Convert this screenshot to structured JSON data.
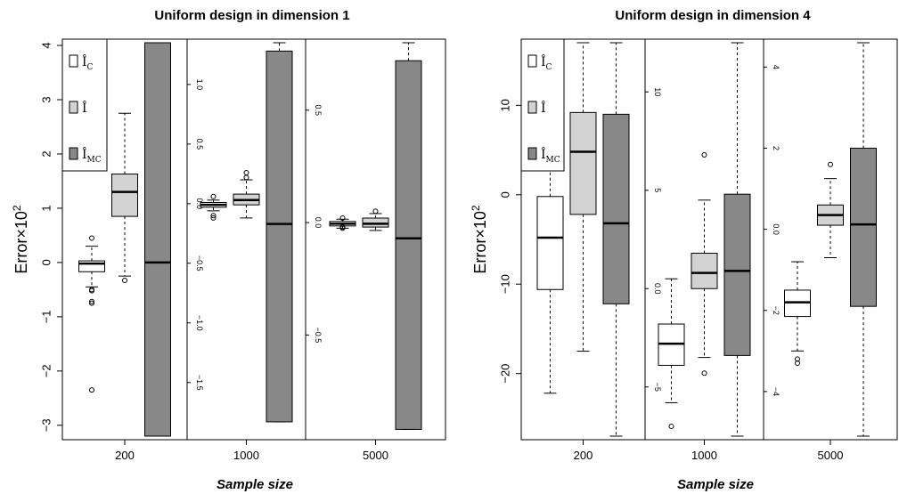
{
  "chart_data": [
    {
      "type": "boxplot",
      "title": "Uniform design in dimension 1",
      "xlabel": "Sample size",
      "ylabel": "Error×10^2",
      "legend": {
        "placement": "top-left",
        "entries": [
          "Î_C",
          "Î",
          "Î_MC"
        ],
        "fills": [
          "#ffffff",
          "#d3d3d3",
          "#888888"
        ]
      },
      "panels": [
        {
          "category": "200",
          "ylim": [
            -3.2,
            4.05
          ],
          "yticks": [
            -3,
            -2,
            -1,
            0,
            1,
            2,
            3,
            4
          ],
          "axis_side": "left",
          "boxes": [
            {
              "series": "Î_C",
              "q1": -0.17,
              "median": -0.02,
              "q3": 0.03,
              "wlo": -0.45,
              "whi": 0.3,
              "outliers": [
                0.45,
                -0.5,
                -0.52,
                -0.72,
                -0.75,
                -2.35
              ]
            },
            {
              "series": "Î",
              "q1": 0.85,
              "median": 1.3,
              "q3": 1.63,
              "wlo": -0.25,
              "whi": 2.75,
              "outliers": [
                -0.33
              ]
            },
            {
              "series": "Î_MC",
              "q1": -3.2,
              "median": 0.0,
              "q3": 4.05,
              "wlo": -3.2,
              "whi": 4.05,
              "outliers": []
            }
          ]
        },
        {
          "category": "1000",
          "ylim": [
            -1.95,
            1.35
          ],
          "yticks": [
            -1.5,
            -1.0,
            -0.5,
            0.0,
            0.5,
            1.0
          ],
          "axis_side": "inner",
          "boxes": [
            {
              "series": "Î_C",
              "q1": -0.03,
              "median": -0.01,
              "q3": 0.01,
              "wlo": -0.06,
              "whi": 0.03,
              "outliers": [
                0.06,
                -0.1,
                -0.12
              ]
            },
            {
              "series": "Î",
              "q1": -0.01,
              "median": 0.03,
              "q3": 0.08,
              "wlo": -0.12,
              "whi": 0.2,
              "outliers": [
                0.26,
                0.22
              ]
            },
            {
              "series": "Î_MC",
              "q1": -1.83,
              "median": -0.17,
              "q3": 1.28,
              "wlo": -1.83,
              "whi": 1.35,
              "outliers": []
            }
          ]
        },
        {
          "category": "5000",
          "ylim": [
            -0.95,
            0.8
          ],
          "yticks": [
            -0.5,
            0.0,
            0.5
          ],
          "axis_side": "inner",
          "boxes": [
            {
              "series": "Î_C",
              "q1": -0.015,
              "median": -0.005,
              "q3": 0.005,
              "wlo": -0.025,
              "whi": 0.015,
              "outliers": [
                0.02,
                -0.02,
                -0.025
              ]
            },
            {
              "series": "Î",
              "q1": -0.02,
              "median": -0.005,
              "q3": 0.02,
              "wlo": -0.035,
              "whi": 0.04,
              "outliers": [
                0.05
              ]
            },
            {
              "series": "Î_MC",
              "q1": -0.92,
              "median": -0.07,
              "q3": 0.72,
              "wlo": -0.92,
              "whi": 0.8,
              "outliers": []
            }
          ]
        }
      ]
    },
    {
      "type": "boxplot",
      "title": "Uniform design in dimension 4",
      "xlabel": "Sample size",
      "ylabel": "Error×10^2",
      "legend": {
        "placement": "top-left",
        "entries": [
          "Î_C",
          "Î",
          "Î_MC"
        ],
        "fills": [
          "#ffffff",
          "#d3d3d3",
          "#888888"
        ]
      },
      "panels": [
        {
          "category": "200",
          "ylim": [
            -27,
            17
          ],
          "yticks": [
            -20,
            -10,
            0,
            10
          ],
          "axis_side": "left",
          "boxes": [
            {
              "series": "Î_C",
              "q1": -10.6,
              "median": -4.8,
              "q3": -0.2,
              "wlo": -22.2,
              "whi": 6.2,
              "outliers": []
            },
            {
              "series": "Î",
              "q1": -2.2,
              "median": 4.8,
              "q3": 9.2,
              "wlo": -17.5,
              "whi": 17,
              "outliers": []
            },
            {
              "series": "Î_MC",
              "q1": -12.2,
              "median": -3.2,
              "q3": 9.0,
              "wlo": -27,
              "whi": 17,
              "outliers": []
            }
          ]
        },
        {
          "category": "1000",
          "ylim": [
            -7.5,
            12.5
          ],
          "yticks": [
            -5,
            0,
            5,
            10
          ],
          "axis_side": "inner",
          "boxes": [
            {
              "series": "Î_C",
              "q1": -3.9,
              "median": -2.8,
              "q3": -1.8,
              "wlo": -5.8,
              "whi": 0.5,
              "outliers": [
                -7.0
              ]
            },
            {
              "series": "Î",
              "q1": 0.0,
              "median": 0.8,
              "q3": 1.8,
              "wlo": -3.5,
              "whi": 4.5,
              "outliers": [
                6.8,
                -4.3
              ]
            },
            {
              "series": "Î_MC",
              "q1": -3.4,
              "median": 0.9,
              "q3": 4.8,
              "wlo": -7.5,
              "whi": 12.5,
              "outliers": []
            }
          ]
        },
        {
          "category": "5000",
          "ylim": [
            -5.1,
            4.6
          ],
          "yticks": [
            -4,
            -2,
            0,
            2,
            4
          ],
          "axis_side": "inner",
          "boxes": [
            {
              "series": "Î_C",
              "q1": -2.15,
              "median": -1.8,
              "q3": -1.5,
              "wlo": -3.0,
              "whi": -0.8,
              "outliers": [
                -3.2,
                -3.3
              ]
            },
            {
              "series": "Î",
              "q1": 0.1,
              "median": 0.35,
              "q3": 0.6,
              "wlo": -0.7,
              "whi": 1.25,
              "outliers": [
                1.6
              ]
            },
            {
              "series": "Î_MC",
              "q1": -1.9,
              "median": 0.12,
              "q3": 2.0,
              "wlo": -5.1,
              "whi": 4.6,
              "outliers": []
            }
          ]
        }
      ]
    }
  ]
}
